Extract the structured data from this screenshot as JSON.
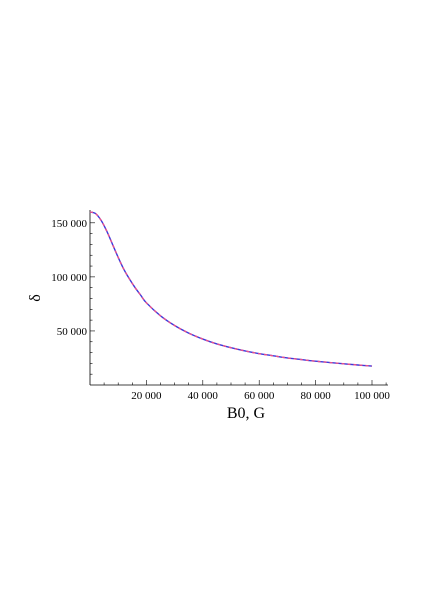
{
  "chart_data": {
    "type": "line",
    "title": "",
    "xlabel": "B0, G",
    "ylabel": "δ",
    "xlim": [
      0,
      100000
    ],
    "ylim": [
      0,
      160000
    ],
    "x_ticks": [
      20000,
      40000,
      60000,
      80000,
      100000
    ],
    "x_tick_labels": [
      "20 000",
      "40 000",
      "60 000",
      "80 000",
      "100 000"
    ],
    "y_ticks": [
      50000,
      100000,
      150000
    ],
    "y_tick_labels": [
      "50 000",
      "100 000",
      "150 000"
    ],
    "grid": false,
    "legend": "none",
    "series": [
      {
        "color": "#3b3bdd",
        "style": "solid",
        "x": [
          0,
          2000,
          4000,
          6000,
          8000,
          10000,
          12000,
          14000,
          16000,
          18000,
          20000,
          25000,
          30000,
          35000,
          40000,
          45000,
          50000,
          55000,
          60000,
          65000,
          70000,
          75000,
          80000,
          85000,
          90000,
          95000,
          100000
        ],
        "y": [
          160000,
          158500,
          152000,
          142000,
          130000,
          118000,
          107000,
          98000,
          90000,
          83000,
          76000,
          64000,
          55000,
          48000,
          42500,
          38000,
          34500,
          31500,
          29000,
          27000,
          25000,
          23500,
          22000,
          20800,
          19600,
          18500,
          17500
        ]
      },
      {
        "color": "#e8508c",
        "style": "dashed",
        "x": [
          0,
          2000,
          4000,
          6000,
          8000,
          10000,
          12000,
          14000,
          16000,
          18000,
          20000,
          25000,
          30000,
          35000,
          40000,
          45000,
          50000,
          55000,
          60000,
          65000,
          70000,
          75000,
          80000,
          85000,
          90000,
          95000,
          100000
        ],
        "y": [
          160000,
          158500,
          152000,
          142000,
          130000,
          118000,
          107000,
          98000,
          90000,
          83000,
          76000,
          64000,
          55000,
          48000,
          42500,
          38000,
          34500,
          31500,
          29000,
          27000,
          25000,
          23500,
          22000,
          20800,
          19600,
          18500,
          17500
        ]
      }
    ]
  }
}
